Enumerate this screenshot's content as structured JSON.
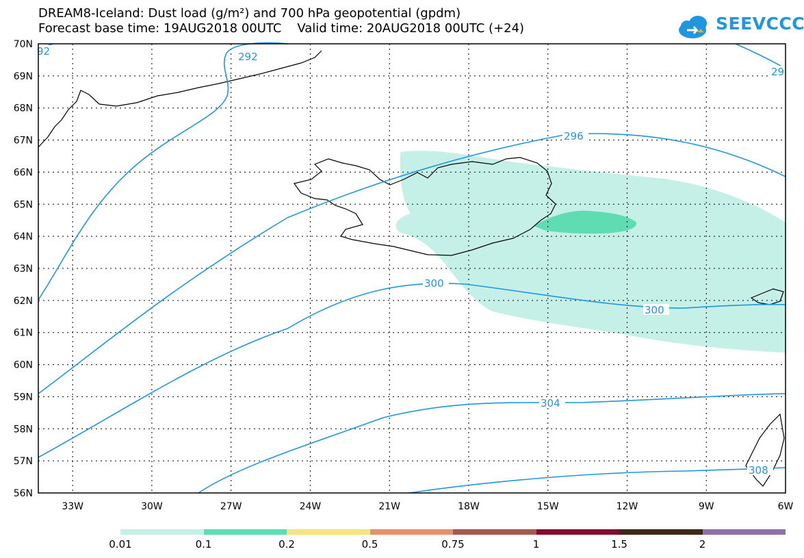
{
  "header": {
    "title_line1": "DREAM8-Iceland: Dust load (g/m²) and 700 hPa geopotential (gpdm)",
    "title_line2": "Forecast base time: 19AUG2018 00UTC    Valid time: 20AUG2018 00UTC (+24)",
    "logo_text": "SEEVCCC"
  },
  "map": {
    "lat_labels": [
      "70N",
      "69N",
      "68N",
      "67N",
      "66N",
      "65N",
      "64N",
      "63N",
      "62N",
      "61N",
      "60N",
      "59N",
      "58N",
      "57N",
      "56N"
    ],
    "lon_labels": [
      "33W",
      "30W",
      "27W",
      "24W",
      "21W",
      "18W",
      "15W",
      "12W",
      "9W",
      "6W"
    ],
    "lon_values": [
      -33,
      -30,
      -27,
      -24,
      -21,
      -18,
      -15,
      -12,
      -9,
      -6
    ],
    "lat_values": [
      70,
      69,
      68,
      67,
      66,
      65,
      64,
      63,
      62,
      61,
      60,
      59,
      58,
      57,
      56
    ],
    "contour_labels": [
      "92",
      "292",
      "296",
      "29",
      "300",
      "300",
      "304",
      "308"
    ],
    "dust_color_light": "#c4f0e8",
    "dust_color_medium": "#5fdcb2",
    "contour_color": "#1e96e6"
  },
  "colorbar": {
    "labels": [
      "0.01",
      "0.1",
      "0.2",
      "0.5",
      "0.75",
      "1",
      "1.5",
      "2"
    ],
    "colors": [
      "#c4f0e8",
      "#5fdcb2",
      "#f5e580",
      "#e8906a",
      "#a8584c",
      "#800c30",
      "#402818",
      "#9070a8"
    ]
  }
}
